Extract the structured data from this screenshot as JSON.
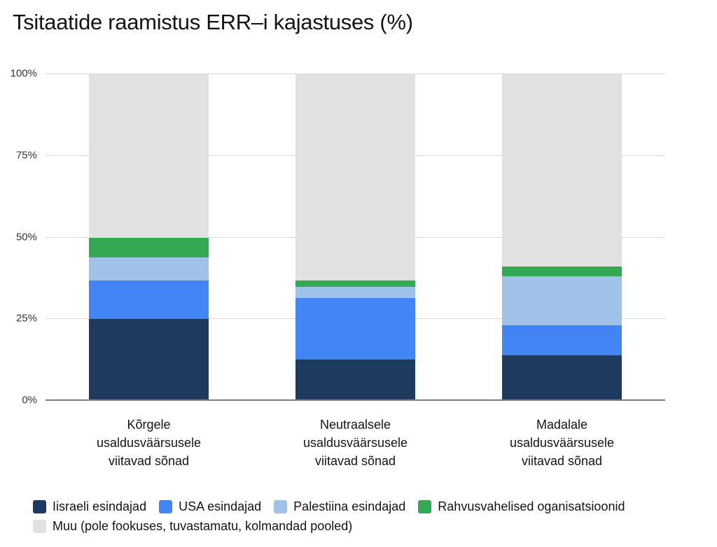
{
  "page": {
    "background": "#ffffff",
    "text_color": "#141414"
  },
  "title": "Tsitaatide raamistus ERR–i kajastuses (%)",
  "chart_data": {
    "type": "bar",
    "stacked": true,
    "title": "Tsitaatide raamistus ERR–i kajastuses (%)",
    "xlabel": "",
    "ylabel": "",
    "ylim": [
      0,
      100
    ],
    "grid": true,
    "legend_position": "bottom",
    "y_ticks": [
      {
        "label": "100%",
        "value": 100
      },
      {
        "label": "75%",
        "value": 75
      },
      {
        "label": "50%",
        "value": 50
      },
      {
        "label": "25%",
        "value": 25
      },
      {
        "label": "0%",
        "value": 0
      }
    ],
    "categories": [
      {
        "lines": [
          "Kõrgele",
          "usaldusväärsusele",
          "viitavad sõnad"
        ]
      },
      {
        "lines": [
          "Neutraalsele",
          "usaldusväärsusele",
          "viitavad sõnad"
        ]
      },
      {
        "lines": [
          "Madalale",
          "usaldusväärsusele",
          "viitavad sõnad"
        ]
      }
    ],
    "series": [
      {
        "name": "Iisraeli esindajad",
        "color": "#1e3a5f",
        "values": [
          24.8,
          12.5,
          13.7
        ]
      },
      {
        "name": "USA esindajad",
        "color": "#4285f4",
        "values": [
          11.8,
          18.7,
          9.3
        ]
      },
      {
        "name": "Palestiina esindajad",
        "color": "#a0c2e8",
        "values": [
          7.1,
          3.4,
          14.8
        ]
      },
      {
        "name": "Rahvusvahelised oganisatsioonid",
        "color": "#34a853",
        "values": [
          6.0,
          2.0,
          3.0
        ]
      },
      {
        "name": "Muu (pole fookuses, tuvastamatu, kolmandad pooled)",
        "color": "#e1e1e1",
        "values": [
          50.3,
          63.4,
          59.2
        ]
      }
    ]
  },
  "style": {
    "gridline_color": "#d9d9d9",
    "baseline_color": "#7f7f7f"
  }
}
